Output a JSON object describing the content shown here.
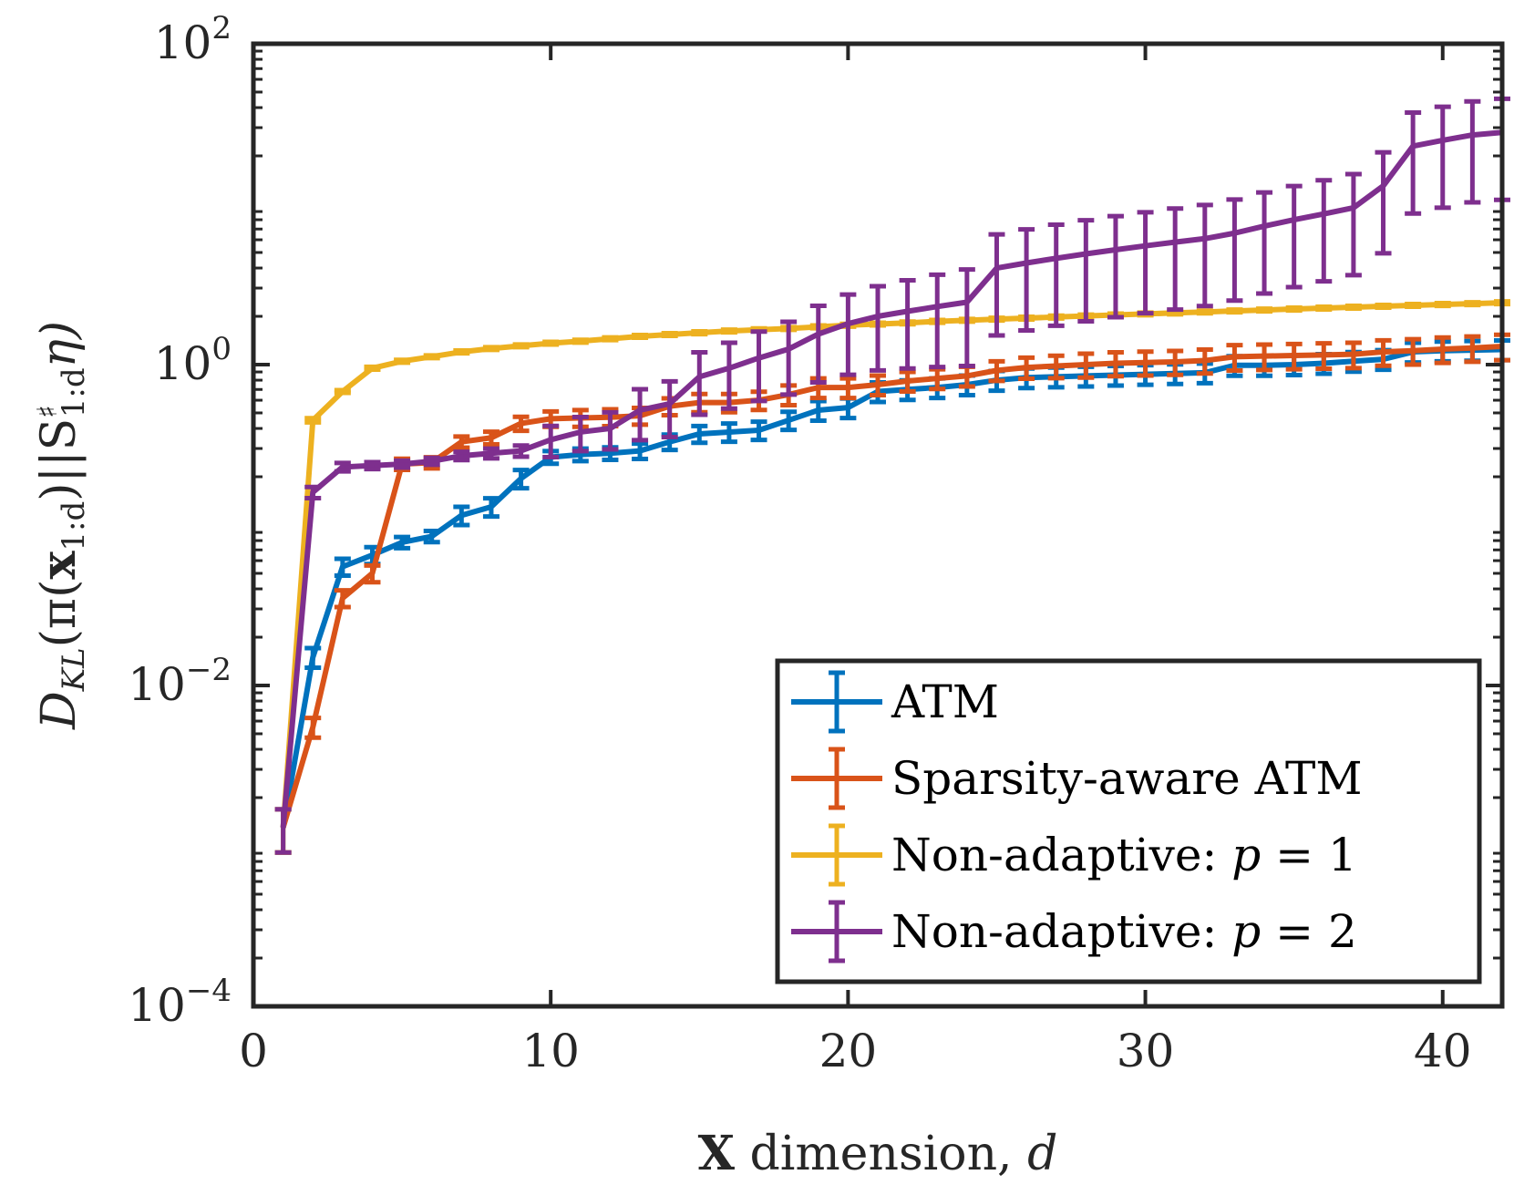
{
  "chart_data": {
    "type": "line",
    "title": "",
    "xlabel": {
      "bold": "X",
      "rest": " dimension, ",
      "italic": "d"
    },
    "ylabel": "D_KL( π(x_1:d) || S♯_1:d η )",
    "ylabel_parts": {
      "main": "D",
      "sub1": "KL",
      "mid": "(π(",
      "bold": "x",
      "sub2": "1:d",
      "mid2": ")||S",
      "sup": "♯",
      "sub3": "1:d",
      "end": "η)"
    },
    "xlim": [
      0,
      42
    ],
    "ylim_log10": [
      -4,
      2
    ],
    "yscale": "log",
    "xticks": [
      "0",
      "10",
      "20",
      "30",
      "40"
    ],
    "xtick_values": [
      0,
      10,
      20,
      30,
      40
    ],
    "yticks": [
      {
        "value": 2,
        "base": "10",
        "exp": "2"
      },
      {
        "value": 0,
        "base": "10",
        "exp": "0"
      },
      {
        "value": -2,
        "base": "10",
        "exp": "−2"
      },
      {
        "value": -4,
        "base": "10",
        "exp": "−4"
      }
    ],
    "x": [
      1,
      2,
      3,
      4,
      5,
      6,
      7,
      8,
      9,
      10,
      11,
      12,
      13,
      14,
      15,
      16,
      17,
      18,
      19,
      20,
      21,
      22,
      23,
      24,
      25,
      26,
      27,
      28,
      29,
      30,
      31,
      32,
      33,
      34,
      35,
      36,
      37,
      38,
      39,
      40,
      41,
      42
    ],
    "legend_position": "bottom-right",
    "series": [
      {
        "name": "ATM",
        "color": "#0072BD",
        "values": [
          0.0013,
          0.015,
          0.055,
          0.065,
          0.078,
          0.085,
          0.115,
          0.13,
          0.195,
          0.265,
          0.275,
          0.28,
          0.29,
          0.33,
          0.37,
          0.38,
          0.39,
          0.45,
          0.52,
          0.54,
          0.68,
          0.7,
          0.72,
          0.75,
          0.8,
          0.83,
          0.84,
          0.85,
          0.86,
          0.87,
          0.88,
          0.89,
          0.99,
          0.99,
          1.0,
          1.02,
          1.05,
          1.08,
          1.2,
          1.22,
          1.23,
          1.24
        ],
        "err_rel": [
          0.3,
          0.14,
          0.12,
          0.12,
          0.08,
          0.08,
          0.13,
          0.13,
          0.13,
          0.09,
          0.09,
          0.09,
          0.11,
          0.11,
          0.12,
          0.13,
          0.13,
          0.13,
          0.14,
          0.14,
          0.14,
          0.14,
          0.14,
          0.14,
          0.14,
          0.14,
          0.14,
          0.14,
          0.14,
          0.14,
          0.14,
          0.14,
          0.14,
          0.14,
          0.14,
          0.14,
          0.14,
          0.14,
          0.14,
          0.14,
          0.14,
          0.14
        ]
      },
      {
        "name": "Sparsity-aware ATM",
        "color": "#D95319",
        "values": [
          0.0013,
          0.0055,
          0.035,
          0.05,
          0.24,
          0.245,
          0.33,
          0.35,
          0.43,
          0.46,
          0.465,
          0.47,
          0.48,
          0.55,
          0.58,
          0.58,
          0.6,
          0.65,
          0.72,
          0.72,
          0.75,
          0.79,
          0.82,
          0.85,
          0.92,
          0.96,
          0.98,
          1.0,
          1.02,
          1.03,
          1.04,
          1.06,
          1.12,
          1.13,
          1.14,
          1.15,
          1.16,
          1.2,
          1.22,
          1.25,
          1.27,
          1.3
        ],
        "err_rel": [
          0.3,
          0.14,
          0.12,
          0.12,
          0.08,
          0.08,
          0.08,
          0.09,
          0.1,
          0.11,
          0.12,
          0.12,
          0.12,
          0.12,
          0.13,
          0.13,
          0.13,
          0.14,
          0.14,
          0.14,
          0.14,
          0.14,
          0.14,
          0.14,
          0.14,
          0.15,
          0.16,
          0.17,
          0.17,
          0.17,
          0.17,
          0.17,
          0.18,
          0.18,
          0.18,
          0.18,
          0.18,
          0.18,
          0.18,
          0.18,
          0.18,
          0.18
        ]
      },
      {
        "name": "Non-adaptive: p = 1",
        "label_prefix": "Non-adaptive: ",
        "label_var": "p",
        "label_eq": " = 1",
        "color": "#EDB120",
        "values": [
          0.0013,
          0.45,
          0.68,
          0.95,
          1.05,
          1.12,
          1.2,
          1.26,
          1.31,
          1.36,
          1.4,
          1.45,
          1.5,
          1.54,
          1.58,
          1.62,
          1.65,
          1.68,
          1.72,
          1.76,
          1.79,
          1.82,
          1.86,
          1.89,
          1.92,
          1.95,
          1.98,
          2.01,
          2.04,
          2.07,
          2.1,
          2.13,
          2.16,
          2.19,
          2.22,
          2.25,
          2.28,
          2.31,
          2.34,
          2.37,
          2.4,
          2.43
        ],
        "err_rel": [
          0.3,
          0.03,
          0.02,
          0.02,
          0.02,
          0.02,
          0.02,
          0.02,
          0.02,
          0.02,
          0.02,
          0.02,
          0.02,
          0.02,
          0.02,
          0.02,
          0.02,
          0.02,
          0.02,
          0.02,
          0.02,
          0.02,
          0.02,
          0.02,
          0.02,
          0.02,
          0.02,
          0.02,
          0.02,
          0.02,
          0.02,
          0.02,
          0.02,
          0.02,
          0.02,
          0.02,
          0.02,
          0.02,
          0.02,
          0.02,
          0.02,
          0.02
        ]
      },
      {
        "name": "Non-adaptive: p = 2",
        "label_prefix": "Non-adaptive: ",
        "label_var": "p",
        "label_eq": " = 2",
        "color": "#7E2F8E",
        "values": [
          0.0013,
          0.16,
          0.23,
          0.235,
          0.24,
          0.25,
          0.27,
          0.28,
          0.29,
          0.34,
          0.38,
          0.4,
          0.52,
          0.57,
          0.84,
          0.95,
          1.1,
          1.25,
          1.55,
          1.8,
          2.0,
          2.15,
          2.3,
          2.45,
          4.0,
          4.3,
          4.6,
          4.9,
          5.2,
          5.5,
          5.8,
          6.1,
          6.6,
          7.3,
          8.0,
          8.7,
          9.5,
          13.0,
          23.0,
          25.0,
          27.0,
          28.0
        ],
        "err_rel": [
          0.3,
          0.08,
          0.06,
          0.05,
          0.05,
          0.05,
          0.06,
          0.07,
          0.08,
          0.22,
          0.24,
          0.26,
          0.35,
          0.38,
          0.42,
          0.44,
          0.46,
          0.48,
          0.5,
          0.52,
          0.54,
          0.56,
          0.58,
          0.6,
          0.62,
          0.62,
          0.62,
          0.62,
          0.62,
          0.62,
          0.62,
          0.62,
          0.62,
          0.62,
          0.62,
          0.62,
          0.62,
          0.62,
          0.62,
          0.62,
          0.62,
          0.62
        ]
      }
    ]
  }
}
